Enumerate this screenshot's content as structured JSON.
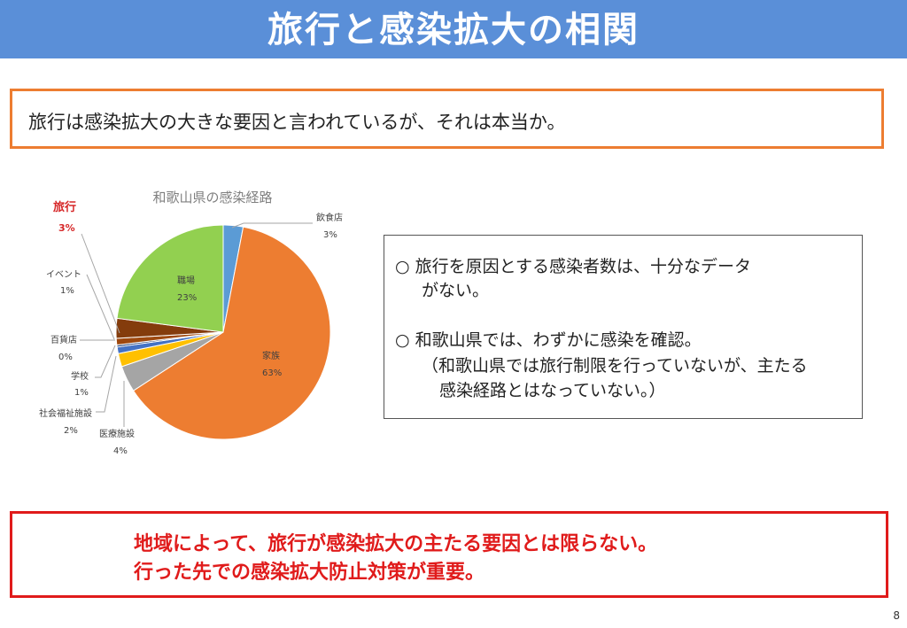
{
  "slide": {
    "title": "旅行と感染拡大の相関",
    "question": "旅行は感染拡大の大きな要因と言われているが、それは本当か。",
    "points": [
      "○ 旅行を原因とする感染者数は、十分なデータ",
      "がない。",
      "○ 和歌山県では、わずかに感染を確認。",
      "（和歌山県では旅行制限を行っていないが、主たる",
      "感染経路とはなっていない。）"
    ],
    "conclusion": [
      "地域によって、旅行が感染拡大の主たる要因とは限らない。",
      "行った先での感染拡大防止対策が重要。"
    ],
    "page_number": "8"
  },
  "chart_data": {
    "type": "pie",
    "title": "和歌山県の感染経路",
    "slices": [
      {
        "label": "飲食店",
        "value": 3,
        "pct_label": "3%",
        "color": "#5b9bd5"
      },
      {
        "label": "家族",
        "value": 63,
        "pct_label": "63%",
        "color": "#ed7d31"
      },
      {
        "label": "医療施設",
        "value": 4,
        "pct_label": "4%",
        "color": "#a5a5a5"
      },
      {
        "label": "社会福祉施設",
        "value": 2,
        "pct_label": "2%",
        "color": "#ffc000"
      },
      {
        "label": "学校",
        "value": 1,
        "pct_label": "1%",
        "color": "#4472c4"
      },
      {
        "label": "百貨店",
        "value": 0.3,
        "pct_label": "0%",
        "color": "#264478"
      },
      {
        "label": "イベント",
        "value": 1,
        "pct_label": "1%",
        "color": "#9e480e"
      },
      {
        "label": "旅行",
        "value": 3,
        "pct_label": "3%",
        "color": "#843c0c"
      },
      {
        "label": "職場",
        "value": 23,
        "pct_label": "23%",
        "color": "#92d050"
      }
    ],
    "highlight": {
      "label": "旅行",
      "color": "#d62728"
    }
  }
}
